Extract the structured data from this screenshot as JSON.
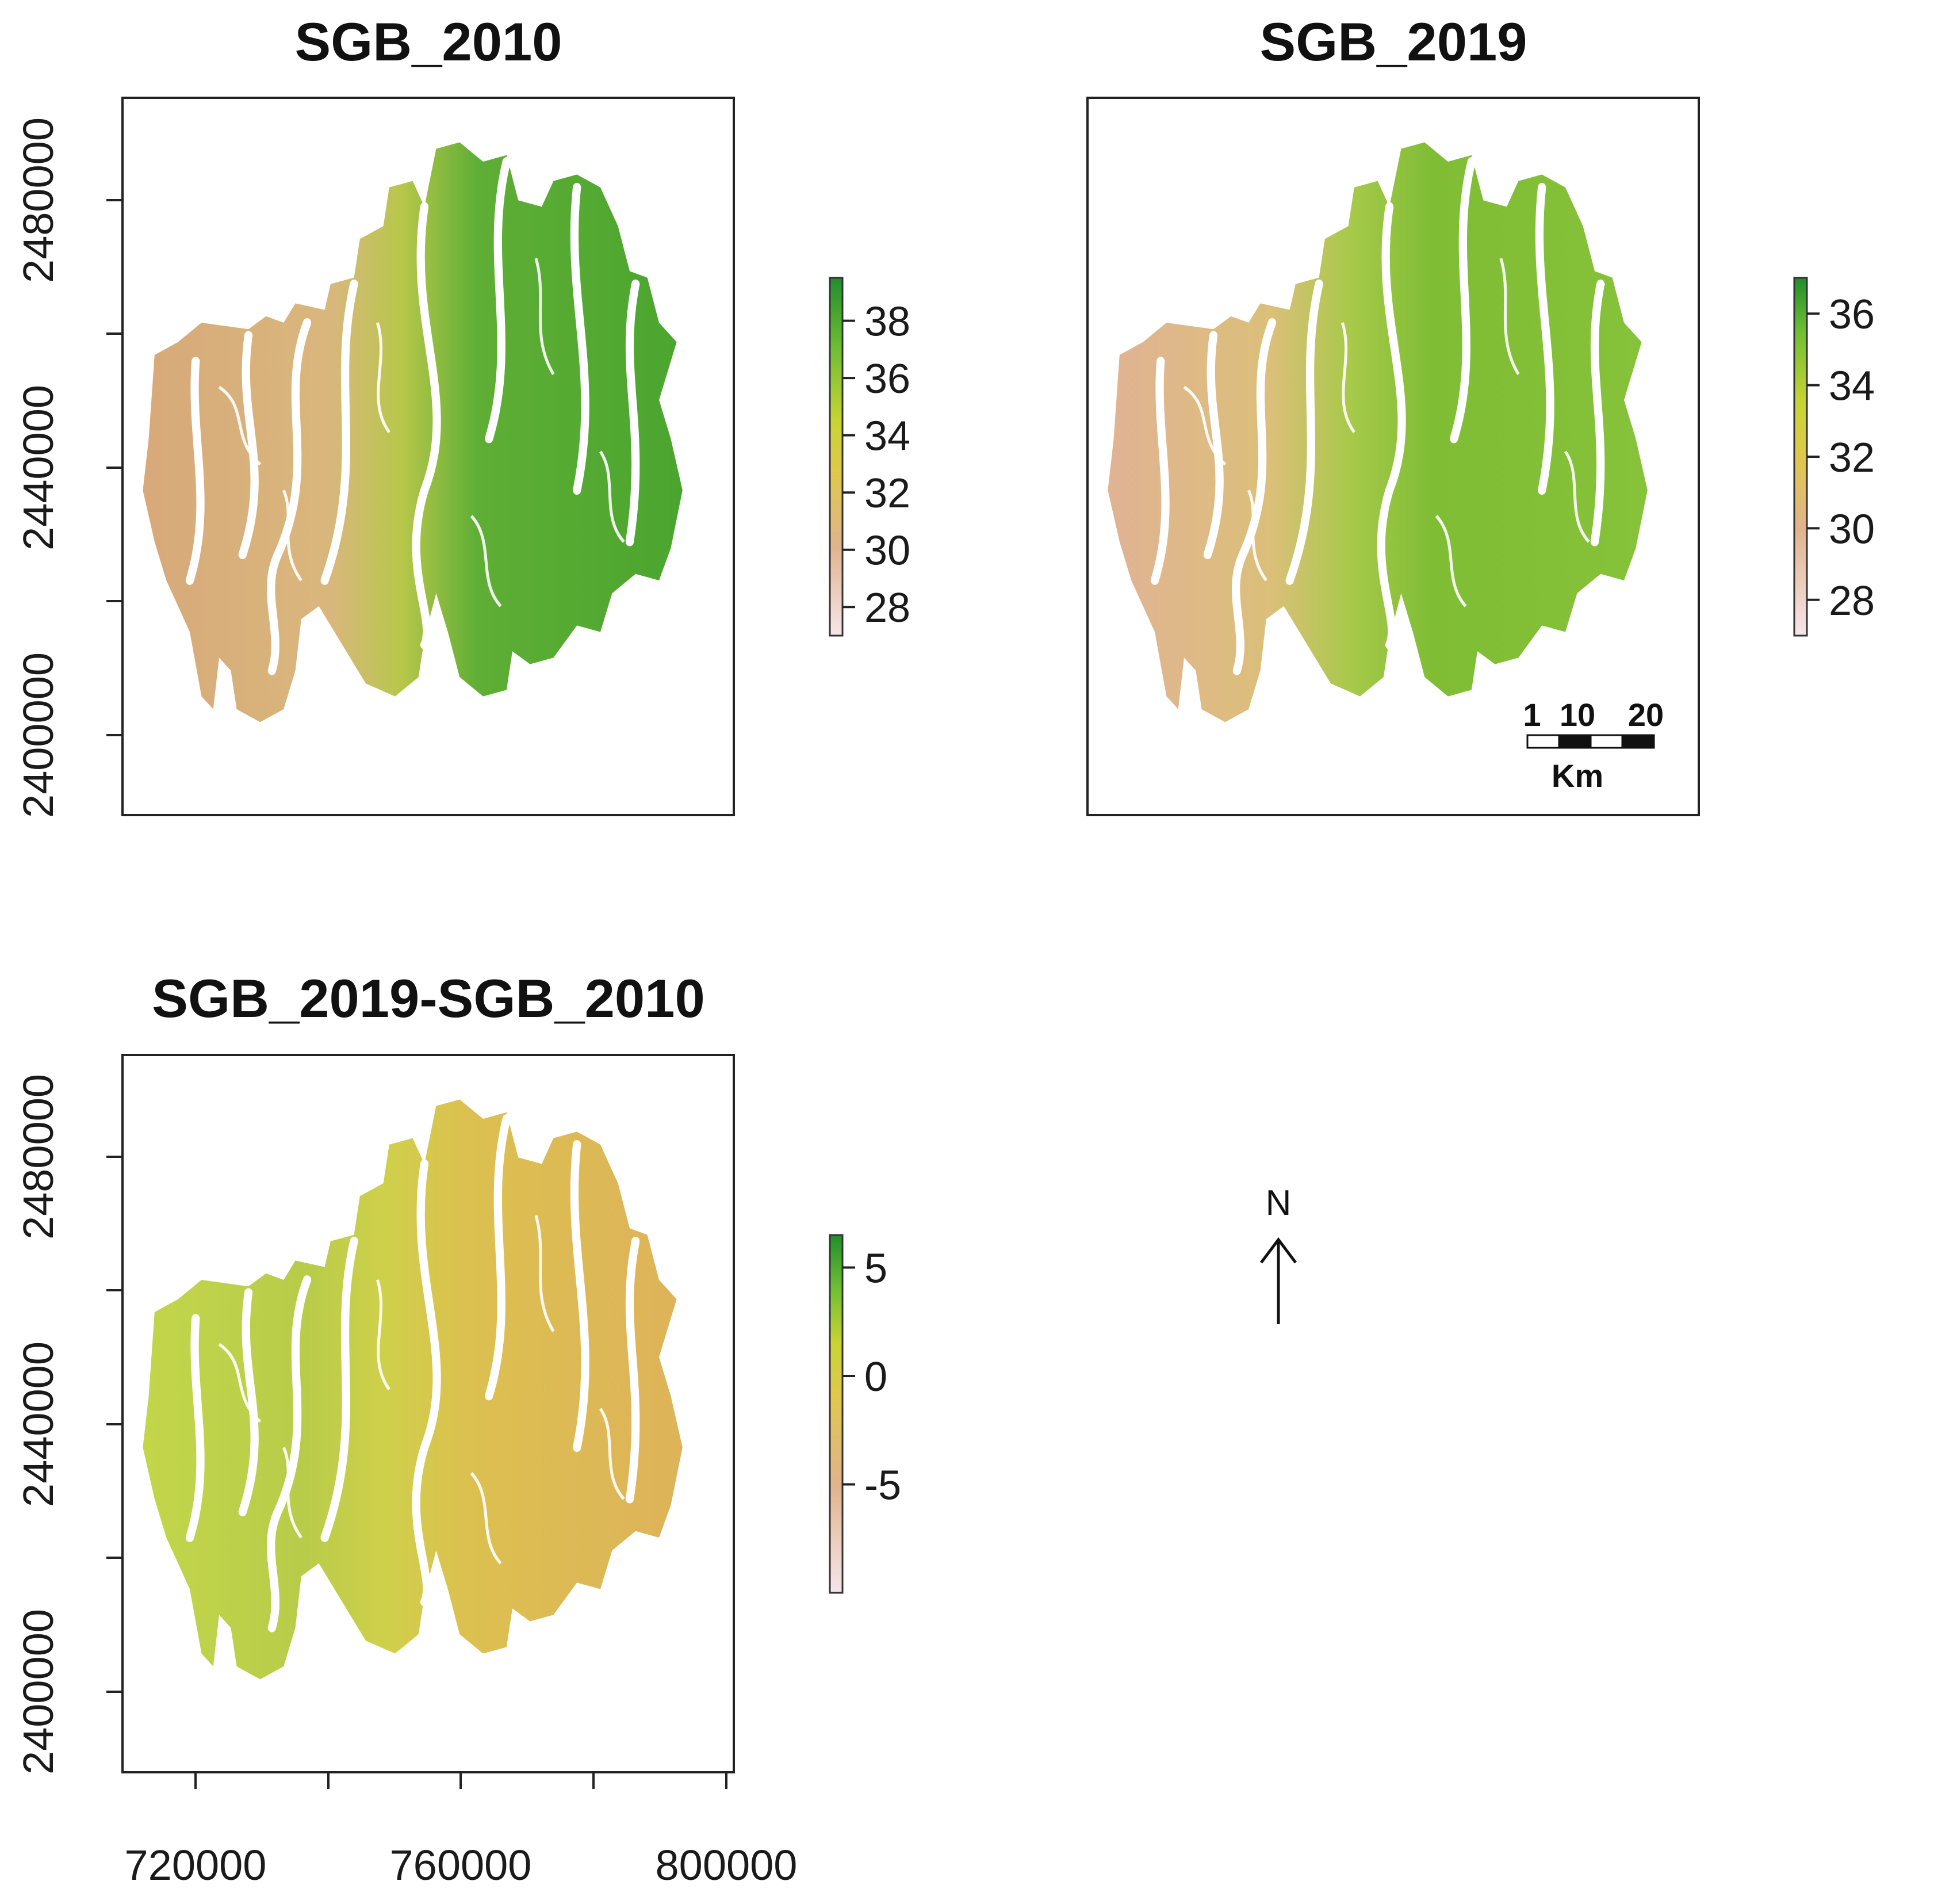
{
  "figure": {
    "panels": [
      {
        "id": "sgb2010",
        "title": "SGB_2010",
        "colorbar": {
          "min": 27,
          "max": 39.5,
          "ticks": [
            "38",
            "36",
            "34",
            "32",
            "30",
            "28"
          ],
          "tick_values": [
            38,
            36,
            34,
            32,
            30,
            28
          ]
        },
        "y_ticks": [
          "2480000",
          "2440000",
          "2400000"
        ]
      },
      {
        "id": "sgb2019",
        "title": "SGB_2019",
        "colorbar": {
          "min": 27,
          "max": 37,
          "ticks": [
            "36",
            "34",
            "32",
            "30",
            "28"
          ],
          "tick_values": [
            36,
            34,
            32,
            30,
            28
          ]
        },
        "scalebar": {
          "labels": [
            "1",
            "10",
            "20"
          ],
          "unit": "Km"
        }
      },
      {
        "id": "diff",
        "title": "SGB_2019-SGB_2010",
        "colorbar": {
          "min": -10,
          "max": 6.5,
          "ticks": [
            "5",
            "0",
            "-5"
          ],
          "tick_values": [
            5,
            0,
            -5
          ]
        },
        "y_ticks": [
          "2480000",
          "2440000",
          "2400000"
        ],
        "x_ticks": [
          "720000",
          "760000",
          "800000"
        ]
      }
    ],
    "north_arrow": {
      "label": "N"
    },
    "colors": {
      "low": "#f3d9dc",
      "mid_low": "#dcb384",
      "mid": "#dfd02e",
      "mid_high": "#8cc63f",
      "high": "#2f9a2f"
    }
  }
}
